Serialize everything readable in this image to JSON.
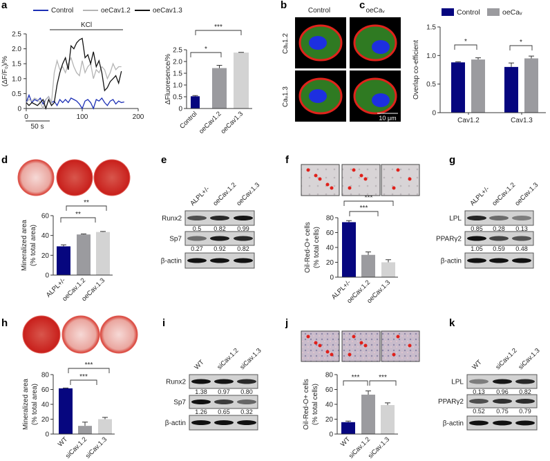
{
  "panel_labels": {
    "a": "a",
    "b": "b",
    "c": "c",
    "d": "d",
    "e": "e",
    "f": "f",
    "g": "g",
    "h": "h",
    "i": "i",
    "j": "j",
    "k": "k"
  },
  "panel_a": {
    "stimulus_label": "KCl",
    "scale_bar_label": "50 s"
  },
  "panel_b": {
    "columns": [
      "Control",
      "oeCaᵥ"
    ],
    "rows": [
      "Caᵥ1.2",
      "Caᵥ1.3"
    ],
    "scale_bar_label": "10 μm"
  },
  "blots": {
    "e": {
      "columns": [
        "ALPL+/-",
        "oeCav.1.2",
        "oeCav.1.3"
      ],
      "rows": [
        {
          "label": "Runx2",
          "quant": [
            "0.5",
            "0.82",
            "0.99"
          ]
        },
        {
          "label": "Sp7",
          "quant": [
            "0.27",
            "0.92",
            "0.82"
          ]
        },
        {
          "label": "β-actin",
          "quant": []
        }
      ]
    },
    "g": {
      "columns": [
        "ALPL+/-",
        "oeCav.1.2",
        "oeCav.1.3"
      ],
      "rows": [
        {
          "label": "LPL",
          "quant": [
            "0.85",
            "0.28",
            "0.13"
          ]
        },
        {
          "label": "PPARγ2",
          "quant": [
            "1.05",
            "0.59",
            "0.48"
          ]
        },
        {
          "label": "β-actin",
          "quant": []
        }
      ]
    },
    "i": {
      "columns": [
        "WT",
        "siCav.1.2",
        "siCav.1.3"
      ],
      "rows": [
        {
          "label": "Runx2",
          "quant": [
            "1.38",
            "0.97",
            "0.80"
          ]
        },
        {
          "label": "Sp7",
          "quant": [
            "1.26",
            "0.65",
            "0.32"
          ]
        },
        {
          "label": "β-actin",
          "quant": []
        }
      ]
    },
    "k": {
      "columns": [
        "WT",
        "siCav.1.2",
        "siCav.1.3"
      ],
      "rows": [
        {
          "label": "LPL",
          "quant": [
            "0.13",
            "0.96",
            "0.82"
          ]
        },
        {
          "label": "PPARγ2",
          "quant": [
            "0.52",
            "0.75",
            "0.79"
          ]
        },
        {
          "label": "β-actin",
          "quant": []
        }
      ]
    }
  },
  "colors": {
    "navy": "#06067f",
    "gray": "#9b9b9f",
    "light_gray": "#d3d3d3",
    "line_control": "#1c2fb5",
    "line_12": "#b4b4b4",
    "line_13": "#111111"
  },
  "chart_data": [
    {
      "type": "line",
      "title": "",
      "xlabel": "",
      "ylabel": [
        "(ΔF/F₀)/%"
      ],
      "xlim": [
        0,
        200
      ],
      "ylim": [
        0,
        2.5
      ],
      "xticks": [
        0,
        100,
        200
      ],
      "xtick_labels": [
        "0",
        "100",
        "200"
      ],
      "yticks": [
        0,
        0.5,
        1,
        1.5,
        2,
        2.5
      ],
      "ytick_labels": [
        "0",
        "0.5",
        "1.0",
        "1.5",
        "2.0",
        "2.5"
      ],
      "legend_position": "top",
      "x_start": 0,
      "x_step": 5,
      "series": [
        {
          "name": "Control",
          "values": [
            0.2,
            0.45,
            0.2,
            0.3,
            0.25,
            0.35,
            0.15,
            0.3,
            0.4,
            0.2,
            0.25,
            0.1,
            0.3,
            0.2,
            0.3,
            0.2,
            0.35,
            0.3,
            0.25,
            0.15,
            0.0,
            0.25,
            0.3,
            0.2,
            0.0,
            0.3,
            0.25,
            0.35,
            0.2,
            0.1,
            0.25,
            0.3,
            0.15,
            0.25,
            0.2,
            0.22
          ]
        },
        {
          "name": "oeCav1.2",
          "values": [
            0.2,
            0.3,
            0.25,
            0.35,
            0.3,
            0.2,
            0.0,
            0.3,
            0.4,
            0.2,
            1.2,
            1.6,
            1.3,
            1.4,
            1.2,
            1.5,
            1.7,
            1.4,
            1.2,
            1.1,
            1.6,
            1.2,
            1.4,
            1.5,
            1.0,
            1.3,
            1.2,
            1.4,
            1.3,
            1.0,
            1.2,
            1.5,
            1.3,
            1.4,
            1.4
          ]
        },
        {
          "name": "oeCav1.3",
          "values": [
            0.2,
            0.1,
            0.2,
            0.15,
            0.1,
            0.2,
            0.3,
            0.0,
            0.3,
            0.1,
            0.2,
            0.8,
            1.2,
            1.5,
            1.7,
            1.3,
            2.1,
            2.0,
            2.2,
            2.3,
            2.35,
            1.7,
            1.8,
            1.5,
            1.9,
            1.4,
            1.6,
            1.2,
            0.6,
            0.7,
            0.9,
            1.0,
            1.1,
            0.85,
            1.25
          ]
        }
      ]
    },
    {
      "type": "bar",
      "title": "",
      "ylabel": [
        "ΔFluoresence/%"
      ],
      "ylim": [
        0,
        2.5
      ],
      "yticks": [
        0,
        0.5,
        1,
        1.5,
        2,
        2.5
      ],
      "ytick_labels": [
        "0",
        "0.5",
        "1.0",
        "1.5",
        "2.0",
        "2.5"
      ],
      "categories": [
        "Control",
        "oeCav1.2",
        "oeCav1.3"
      ],
      "values": [
        0.52,
        1.72,
        2.38
      ],
      "errors": [
        0.03,
        0.12,
        0.01
      ],
      "significance": [
        {
          "pair": [
            0,
            1
          ],
          "label": "*"
        },
        {
          "pair": [
            0,
            2
          ],
          "label": "***"
        }
      ]
    },
    {
      "type": "bar",
      "title": "",
      "ylabel": [
        "Overlap co-efficient"
      ],
      "ylim": [
        0,
        1.5
      ],
      "yticks": [
        0,
        0.5,
        1,
        1.5
      ],
      "ytick_labels": [
        "0",
        "0.5",
        "1.0",
        "1.5"
      ],
      "legend_position": "top",
      "categories": [
        "Cav1.2",
        "Cav1.3"
      ],
      "series": [
        {
          "name": "Control",
          "values": [
            0.88,
            0.8
          ],
          "errors": [
            0.01,
            0.07
          ]
        },
        {
          "name": "oeCaᵥ",
          "values": [
            0.93,
            0.95
          ],
          "errors": [
            0.03,
            0.04
          ]
        }
      ],
      "significance": [
        {
          "pair": [
            0,
            1
          ],
          "label": "*"
        },
        {
          "pair": [
            2,
            3
          ],
          "label": "*"
        }
      ]
    },
    {
      "type": "bar",
      "title": "",
      "ylabel": [
        "Mineralized area",
        "(% total area)"
      ],
      "ylim": [
        0,
        60
      ],
      "yticks": [
        0,
        20,
        40,
        60
      ],
      "ytick_labels": [
        "0",
        "20",
        "40",
        "60"
      ],
      "categories": [
        "ALPL+/-",
        "oeCav.1.2",
        "oeCav.1.3"
      ],
      "values": [
        29,
        41,
        43.5
      ],
      "errors": [
        1.5,
        0.5,
        0.5
      ],
      "significance": [
        {
          "pair": [
            0,
            1
          ],
          "label": "**"
        },
        {
          "pair": [
            0,
            2
          ],
          "label": "**"
        }
      ]
    },
    {
      "type": "bar",
      "title": "",
      "ylabel": [
        "Oil-Red-O+ cells",
        "(% total cells)"
      ],
      "ylim": [
        0,
        80
      ],
      "yticks": [
        0,
        20,
        40,
        60,
        80
      ],
      "ytick_labels": [
        "0",
        "20",
        "40",
        "60",
        "80"
      ],
      "categories": [
        "ALPL+/-",
        "oeCav.1.2",
        "oeCav.1.3"
      ],
      "values": [
        74,
        30,
        20
      ],
      "errors": [
        2,
        4,
        3.5
      ],
      "significance": [
        {
          "pair": [
            0,
            1
          ],
          "label": "***"
        },
        {
          "pair": [
            0,
            2
          ],
          "label": "***"
        }
      ]
    },
    {
      "type": "bar",
      "title": "",
      "ylabel": [
        "Mineralized area",
        "(% total area)"
      ],
      "ylim": [
        0,
        80
      ],
      "yticks": [
        0,
        20,
        40,
        60,
        80
      ],
      "ytick_labels": [
        "0",
        "20",
        "40",
        "60",
        "80"
      ],
      "categories": [
        "WT",
        "siCav.1.2",
        "siCav.1.3"
      ],
      "values": [
        61.5,
        11,
        20
      ],
      "errors": [
        0.5,
        5,
        2.5
      ],
      "significance": [
        {
          "pair": [
            0,
            1
          ],
          "label": "***"
        },
        {
          "pair": [
            0,
            2
          ],
          "label": "***"
        }
      ]
    },
    {
      "type": "bar",
      "title": "",
      "ylabel": [
        "Oil-Red-O+ cells",
        "(% total cells)"
      ],
      "ylim": [
        0,
        80
      ],
      "yticks": [
        0,
        20,
        40,
        60,
        80
      ],
      "ytick_labels": [
        "0",
        "20",
        "40",
        "60",
        "80"
      ],
      "categories": [
        "WT",
        "siCav.1.2",
        "siCav.1.3"
      ],
      "values": [
        16,
        53,
        39
      ],
      "errors": [
        1.5,
        5,
        3
      ],
      "significance": [
        {
          "pair": [
            0,
            1
          ],
          "label": "***"
        },
        {
          "pair": [
            1,
            2
          ],
          "label": "***"
        }
      ]
    }
  ]
}
